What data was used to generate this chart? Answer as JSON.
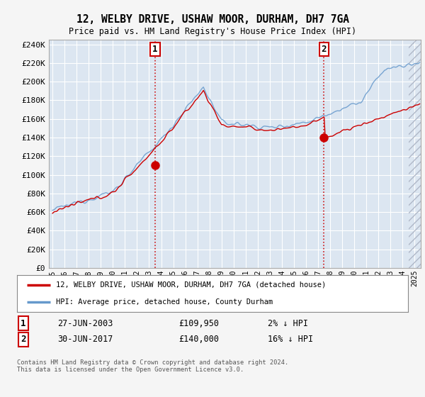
{
  "title1": "12, WELBY DRIVE, USHAW MOOR, DURHAM, DH7 7GA",
  "title2": "Price paid vs. HM Land Registry's House Price Index (HPI)",
  "ylabel_ticks": [
    "£0",
    "£20K",
    "£40K",
    "£60K",
    "£80K",
    "£100K",
    "£120K",
    "£140K",
    "£160K",
    "£180K",
    "£200K",
    "£220K",
    "£240K"
  ],
  "ylim": [
    0,
    245000
  ],
  "yticks": [
    0,
    20000,
    40000,
    60000,
    80000,
    100000,
    120000,
    140000,
    160000,
    180000,
    200000,
    220000,
    240000
  ],
  "xlim_start": 1994.7,
  "xlim_end": 2025.5,
  "marker1_x": 2003.49,
  "marker1_y": 109950,
  "marker2_x": 2017.49,
  "marker2_y": 140000,
  "legend_line1": "12, WELBY DRIVE, USHAW MOOR, DURHAM, DH7 7GA (detached house)",
  "legend_line2": "HPI: Average price, detached house, County Durham",
  "footer": "Contains HM Land Registry data © Crown copyright and database right 2024.\nThis data is licensed under the Open Government Licence v3.0.",
  "bg_color": "#dce6f1",
  "line_color_red": "#cc0000",
  "line_color_blue": "#6699cc",
  "grid_color": "#ffffff",
  "hatch_color": "#b0b8c8"
}
